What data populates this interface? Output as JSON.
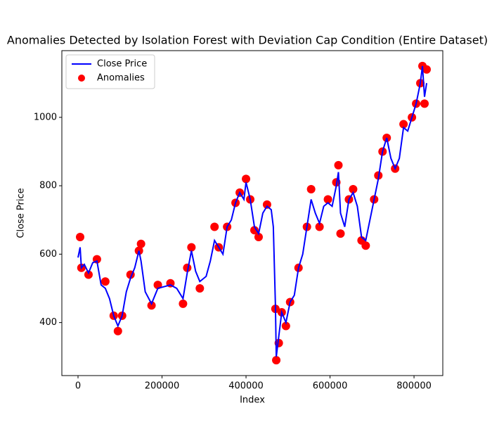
{
  "chart_data": {
    "type": "line",
    "title": "Anomalies Detected by Isolation Forest with Deviation Cap Condition (Entire Dataset)",
    "x_label": "Index",
    "y_label": "Close Price",
    "xlim": [
      -38500,
      868500
    ],
    "ylim": [
      245,
      1195
    ],
    "xticks": [
      0,
      200000,
      400000,
      600000,
      800000
    ],
    "yticks": [
      400,
      600,
      800,
      1000
    ],
    "legend": "upper left",
    "series": [
      {
        "name": "Close Price",
        "type": "line",
        "color": "#0000ff",
        "x": [
          0,
          5000,
          8000,
          15000,
          25000,
          35000,
          45000,
          55000,
          65000,
          75000,
          85000,
          95000,
          105000,
          115000,
          125000,
          135000,
          145000,
          150000,
          160000,
          175000,
          190000,
          205000,
          220000,
          235000,
          250000,
          260000,
          270000,
          280000,
          290000,
          305000,
          315000,
          325000,
          335000,
          345000,
          355000,
          365000,
          375000,
          385000,
          395000,
          400000,
          410000,
          420000,
          430000,
          440000,
          450000,
          460000,
          465000,
          470000,
          472000,
          478000,
          485000,
          495000,
          505000,
          515000,
          525000,
          535000,
          545000,
          555000,
          565000,
          575000,
          585000,
          595000,
          605000,
          615000,
          620000,
          625000,
          635000,
          645000,
          655000,
          665000,
          675000,
          685000,
          695000,
          705000,
          715000,
          725000,
          735000,
          745000,
          755000,
          765000,
          775000,
          785000,
          795000,
          805000,
          815000,
          820000,
          825000,
          830000
        ],
        "values": [
          590,
          620,
          560,
          570,
          545,
          575,
          580,
          510,
          500,
          470,
          420,
          390,
          420,
          490,
          530,
          560,
          610,
          580,
          490,
          455,
          500,
          505,
          510,
          500,
          470,
          545,
          610,
          550,
          520,
          535,
          580,
          640,
          620,
          600,
          680,
          700,
          750,
          780,
          760,
          810,
          760,
          680,
          660,
          720,
          740,
          730,
          680,
          450,
          300,
          360,
          430,
          400,
          460,
          480,
          560,
          600,
          680,
          760,
          720,
          690,
          740,
          750,
          740,
          800,
          840,
          720,
          680,
          760,
          780,
          740,
          650,
          640,
          700,
          760,
          820,
          900,
          940,
          880,
          850,
          880,
          970,
          960,
          1000,
          1040,
          1100,
          1150,
          1060,
          1100
        ]
      },
      {
        "name": "Anomalies",
        "type": "scatter",
        "color": "#ff0000",
        "x": [
          5000,
          8000,
          25000,
          45000,
          65000,
          85000,
          95000,
          105000,
          125000,
          145000,
          150000,
          175000,
          190000,
          220000,
          250000,
          260000,
          270000,
          290000,
          325000,
          335000,
          355000,
          375000,
          385000,
          400000,
          410000,
          420000,
          430000,
          450000,
          470000,
          472000,
          478000,
          485000,
          495000,
          505000,
          525000,
          545000,
          555000,
          575000,
          595000,
          615000,
          620000,
          625000,
          645000,
          655000,
          675000,
          685000,
          705000,
          715000,
          725000,
          735000,
          755000,
          775000,
          795000,
          805000,
          815000,
          820000,
          825000,
          830000
        ],
        "values": [
          650,
          560,
          540,
          585,
          520,
          420,
          375,
          420,
          540,
          610,
          630,
          450,
          510,
          515,
          455,
          560,
          620,
          500,
          680,
          620,
          680,
          750,
          780,
          820,
          760,
          670,
          650,
          745,
          440,
          290,
          340,
          430,
          390,
          460,
          560,
          680,
          790,
          680,
          760,
          810,
          860,
          660,
          760,
          790,
          640,
          625,
          760,
          830,
          900,
          940,
          850,
          980,
          1000,
          1040,
          1100,
          1150,
          1040,
          1140
        ]
      }
    ]
  }
}
